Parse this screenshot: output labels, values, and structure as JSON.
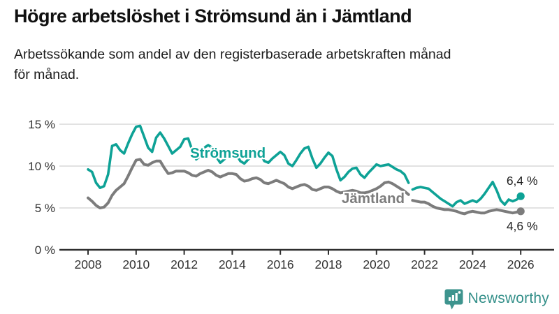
{
  "title": "Högre arbetslöshet i Strömsund än i Jämtland",
  "subtitle": {
    "lines": [
      "Arbetssökande som andel av den registerbaserade arbetskraften månad",
      "för månad."
    ]
  },
  "branding": {
    "name": "Newsworthy",
    "icon": "bar-chart-speech-bubble"
  },
  "colors": {
    "stromsund": "#0ea296",
    "jamtland": "#7c7c7c",
    "grid": "#d8d8d8",
    "axis": "#2e2e2e",
    "text": "#333333",
    "annotation": "#1f1f1f",
    "logo": "#35908a"
  },
  "chart_data": {
    "type": "line",
    "unit": "%",
    "x_axis": {
      "ticks": [
        2008,
        2010,
        2012,
        2014,
        2016,
        2018,
        2020,
        2022,
        2024,
        2026
      ],
      "range": [
        2006.8,
        2027.3
      ],
      "grid": false
    },
    "y_axis": {
      "ticks": [
        0,
        5,
        10,
        15
      ],
      "tick_labels": [
        "0 %",
        "5 %",
        "10 %",
        "15 %"
      ],
      "range": [
        0,
        15.8
      ],
      "grid": true
    },
    "series": [
      {
        "name": "Strömsund",
        "color": "#0ea296",
        "end_value": 6.4,
        "end_label": "6,4 %",
        "segments": [
          {
            "start": 2008.0,
            "step": 0.1666667,
            "values": [
              9.6,
              9.3,
              8.0,
              7.4,
              7.6,
              9.0,
              12.4,
              12.6,
              11.9,
              11.5,
              12.7,
              13.8,
              14.7,
              14.8,
              13.5,
              12.2,
              11.7,
              13.4,
              14.0,
              13.3,
              12.4,
              11.5,
              11.9,
              12.3,
              13.2,
              13.3,
              11.9,
              10.8,
              11.2,
              12.2,
              12.5,
              12.2,
              11.1,
              10.4,
              10.8,
              11.3,
              11.6,
              11.4,
              10.6,
              10.3,
              10.8,
              11.2,
              11.8,
              11.5,
              10.6,
              10.4,
              10.9,
              11.3,
              11.7,
              11.3,
              10.3,
              10.0,
              10.7,
              11.5,
              12.1,
              12.3,
              10.9,
              9.8,
              10.3,
              11.0,
              11.6,
              11.2,
              9.6,
              8.3,
              8.7,
              9.3,
              9.7,
              9.8,
              9.0,
              8.6,
              9.2,
              9.7,
              10.2,
              10.0,
              10.1,
              10.2,
              9.9,
              9.6,
              9.4,
              9.0,
              8.0
            ]
          },
          {
            "start": 2021.5,
            "step": 0.1666667,
            "values": [
              7.2,
              7.4,
              7.5,
              7.4,
              7.3,
              6.9,
              6.5,
              6.1,
              5.8,
              5.5,
              5.2,
              5.7,
              5.9,
              5.5,
              5.7,
              5.9,
              5.7,
              6.1,
              6.7,
              7.4,
              8.1,
              7.1,
              5.9,
              5.4,
              6.0,
              5.8,
              6.0,
              6.4
            ]
          }
        ]
      },
      {
        "name": "Jämtland",
        "color": "#7c7c7c",
        "end_value": 4.6,
        "end_label": "4,6 %",
        "segments": [
          {
            "start": 2008.0,
            "step": 0.1666667,
            "values": [
              6.2,
              5.8,
              5.3,
              5.0,
              5.1,
              5.6,
              6.5,
              7.1,
              7.5,
              7.9,
              8.8,
              9.8,
              10.7,
              10.8,
              10.2,
              10.1,
              10.4,
              10.6,
              10.6,
              9.8,
              9.1,
              9.2,
              9.4,
              9.4,
              9.4,
              9.2,
              8.9,
              8.8,
              9.1,
              9.3,
              9.5,
              9.3,
              8.9,
              8.7,
              8.9,
              9.1,
              9.1,
              9.0,
              8.5,
              8.2,
              8.3,
              8.5,
              8.6,
              8.4,
              8.0,
              7.9,
              8.1,
              8.3,
              8.1,
              7.9,
              7.5,
              7.3,
              7.5,
              7.7,
              7.8,
              7.6,
              7.2,
              7.1,
              7.3,
              7.5,
              7.5,
              7.3,
              7.0,
              6.8,
              6.9,
              7.0,
              7.1,
              7.0,
              6.8,
              6.8,
              6.9,
              7.1,
              7.3,
              7.6,
              8.0,
              8.1,
              7.9,
              7.6,
              7.3,
              7.0,
              6.6
            ]
          },
          {
            "start": 2021.5,
            "step": 0.1666667,
            "values": [
              5.9,
              5.8,
              5.7,
              5.7,
              5.5,
              5.2,
              5.0,
              4.9,
              4.8,
              4.8,
              4.7,
              4.6,
              4.4,
              4.3,
              4.5,
              4.6,
              4.5,
              4.4,
              4.4,
              4.6,
              4.7,
              4.8,
              4.7,
              4.6,
              4.5,
              4.4,
              4.5,
              4.6
            ]
          }
        ]
      }
    ],
    "annotations": {
      "series_labels": [
        "Strömsund",
        "Jämtland"
      ],
      "end_labels": [
        "6,4 %",
        "4,6 %"
      ],
      "data_break_visible_around": 2021.4
    },
    "legend_position": "inline-labels"
  }
}
